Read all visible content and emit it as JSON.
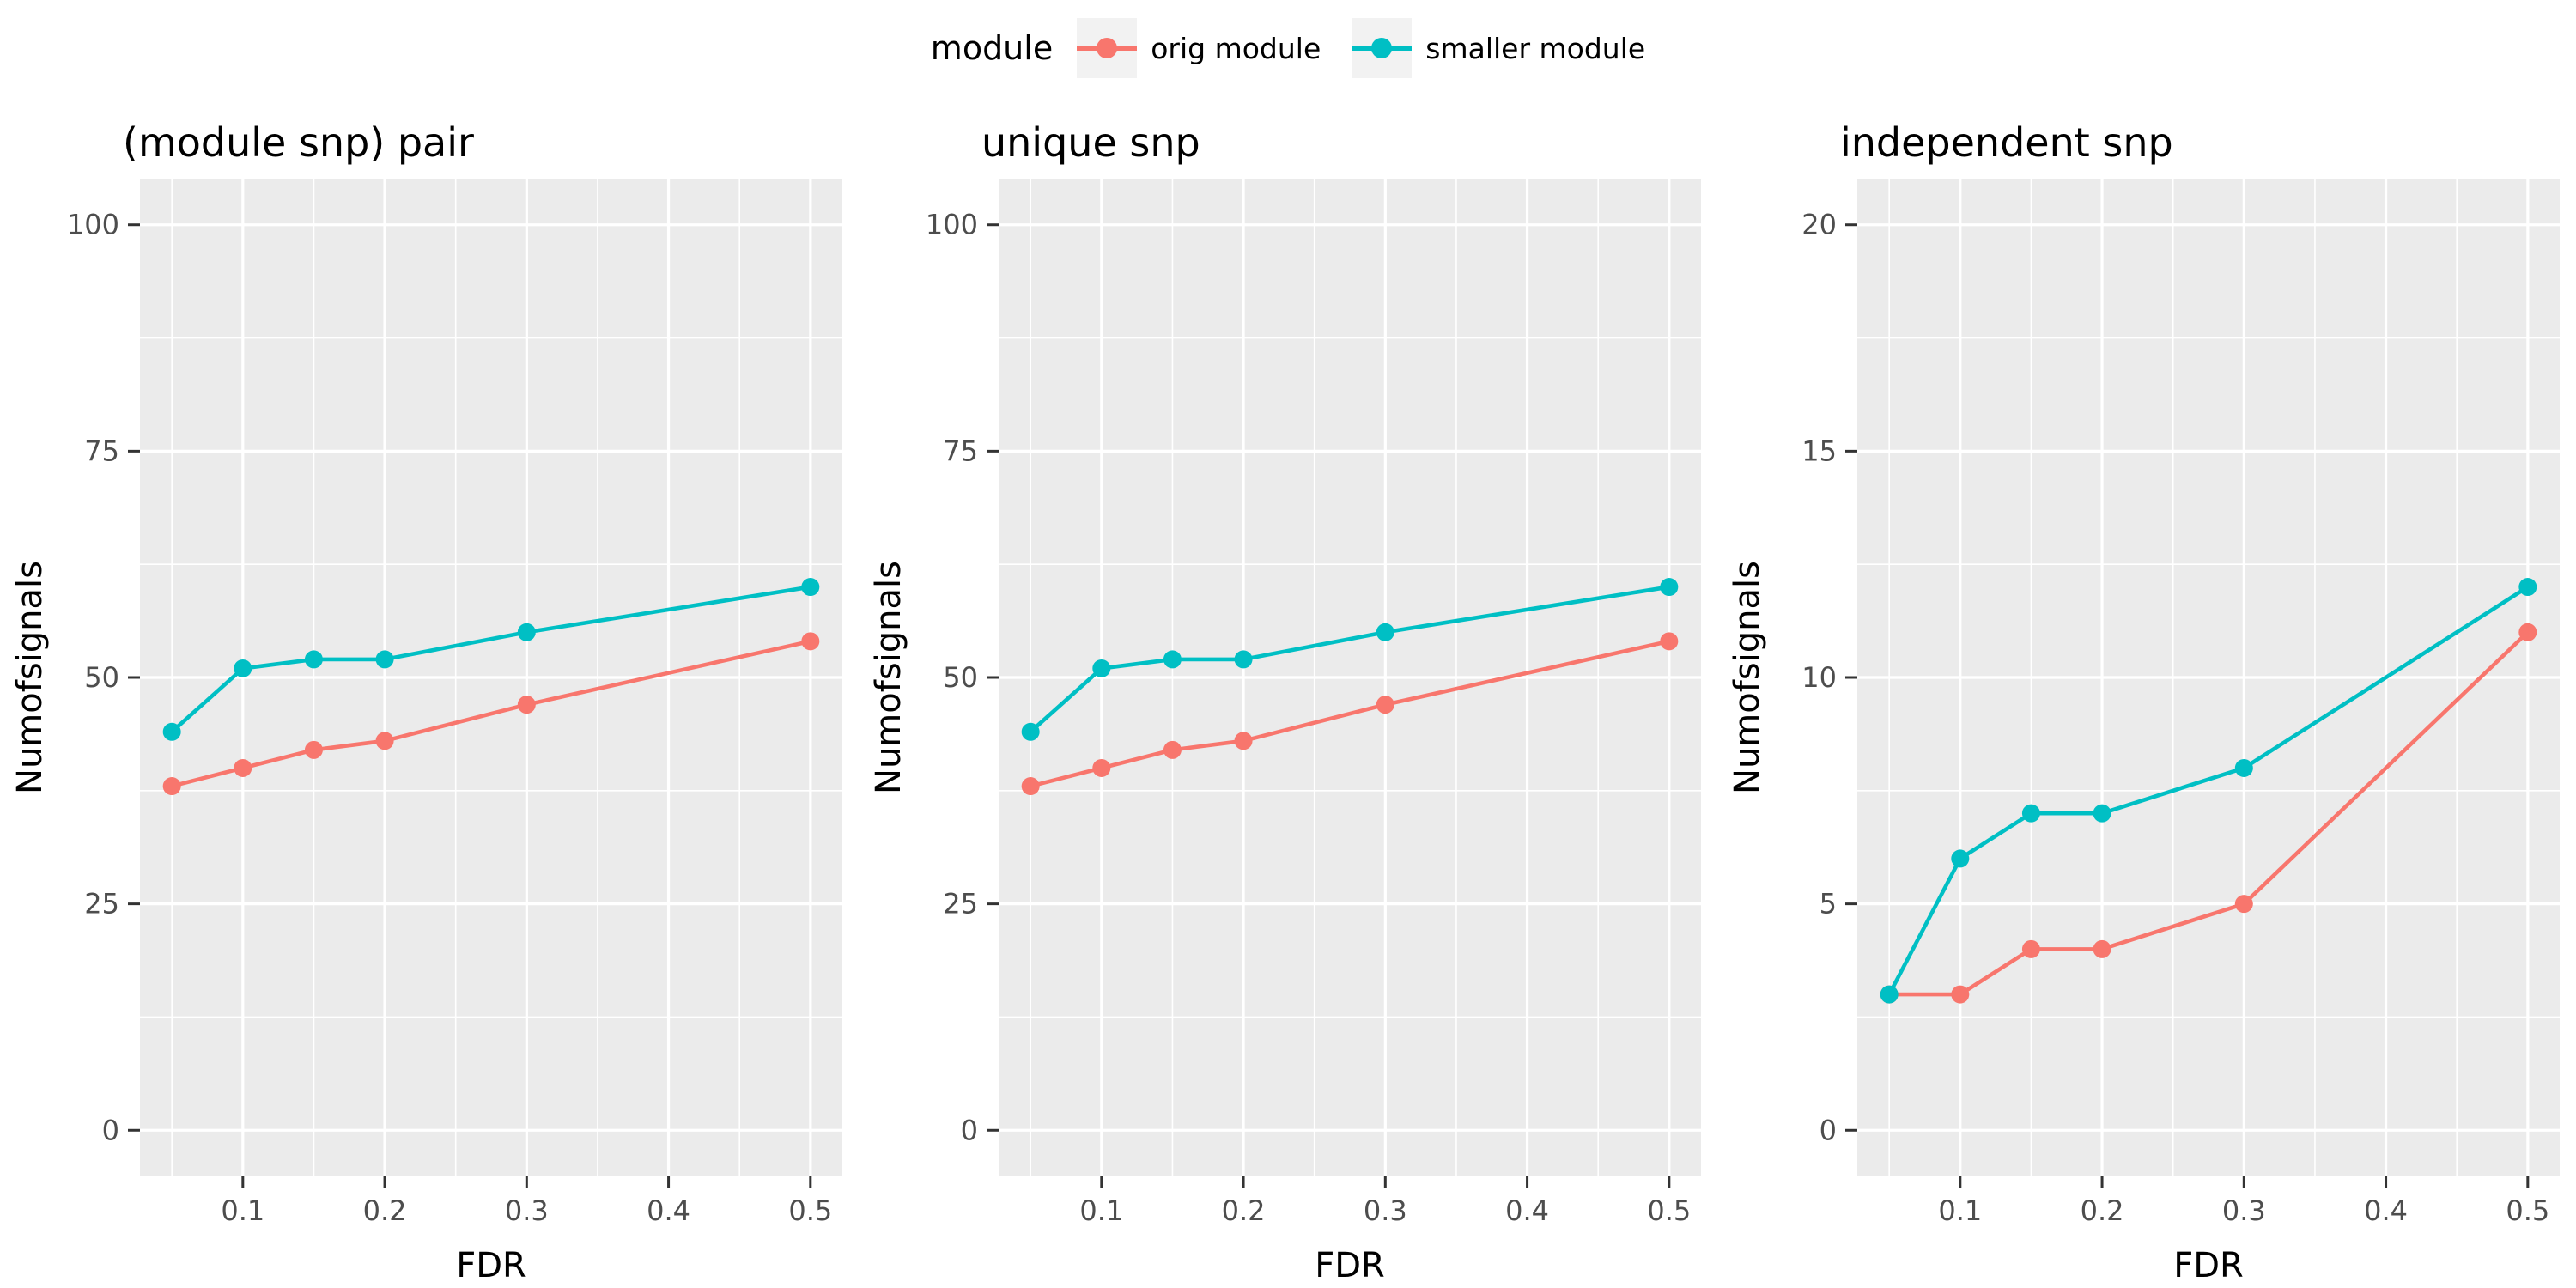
{
  "legend": {
    "title": "module",
    "items": [
      {
        "label": "orig module",
        "color": "#F8766D"
      },
      {
        "label": "smaller module",
        "color": "#00BFC4"
      }
    ]
  },
  "colors": {
    "panel_bg": "#EBEBEB",
    "grid_major": "#FFFFFF",
    "grid_minor": "#FFFFFF",
    "tick_text": "#4D4D4D",
    "tick_mark": "#333333",
    "title_text": "#000000",
    "axis_title_text": "#000000",
    "legend_key_bg": "#F2F2F2",
    "series_orig": "#F8766D",
    "series_smaller": "#00BFC4"
  },
  "chart_data": [
    {
      "type": "line",
      "title": "(module snp) pair",
      "xlabel": "FDR",
      "ylabel": "Numofsignals",
      "x": [
        0.05,
        0.1,
        0.15,
        0.2,
        0.3,
        0.5
      ],
      "series": [
        {
          "name": "orig module",
          "color": "#F8766D",
          "values": [
            38,
            40,
            42,
            43,
            47,
            54
          ]
        },
        {
          "name": "smaller module",
          "color": "#00BFC4",
          "values": [
            44,
            51,
            52,
            52,
            55,
            60
          ]
        }
      ],
      "xlim": [
        0.0275,
        0.5225
      ],
      "ylim": [
        0,
        100
      ],
      "xticks": [
        0.1,
        0.2,
        0.3,
        0.4,
        0.5
      ],
      "xtick_labels": [
        "0.1",
        "0.2",
        "0.3",
        "0.4",
        "0.5"
      ],
      "xminor": [
        0.05,
        0.15,
        0.25,
        0.35,
        0.45
      ],
      "yticks": [
        0,
        25,
        50,
        75,
        100
      ],
      "ytick_labels": [
        "0",
        "25",
        "50",
        "75",
        "100"
      ],
      "yminor": [
        12.5,
        37.5,
        62.5,
        87.5
      ],
      "grid": true,
      "legend_position": "top"
    },
    {
      "type": "line",
      "title": "unique snp",
      "xlabel": "FDR",
      "ylabel": "Numofsignals",
      "x": [
        0.05,
        0.1,
        0.15,
        0.2,
        0.3,
        0.5
      ],
      "series": [
        {
          "name": "orig module",
          "color": "#F8766D",
          "values": [
            38,
            40,
            42,
            43,
            47,
            54
          ]
        },
        {
          "name": "smaller module",
          "color": "#00BFC4",
          "values": [
            44,
            51,
            52,
            52,
            55,
            60
          ]
        }
      ],
      "xlim": [
        0.0275,
        0.5225
      ],
      "ylim": [
        0,
        100
      ],
      "xticks": [
        0.1,
        0.2,
        0.3,
        0.4,
        0.5
      ],
      "xtick_labels": [
        "0.1",
        "0.2",
        "0.3",
        "0.4",
        "0.5"
      ],
      "xminor": [
        0.05,
        0.15,
        0.25,
        0.35,
        0.45
      ],
      "yticks": [
        0,
        25,
        50,
        75,
        100
      ],
      "ytick_labels": [
        "0",
        "25",
        "50",
        "75",
        "100"
      ],
      "yminor": [
        12.5,
        37.5,
        62.5,
        87.5
      ],
      "grid": true,
      "legend_position": "top"
    },
    {
      "type": "line",
      "title": "independent snp",
      "xlabel": "FDR",
      "ylabel": "Numofsignals",
      "x": [
        0.05,
        0.1,
        0.15,
        0.2,
        0.3,
        0.5
      ],
      "series": [
        {
          "name": "orig module",
          "color": "#F8766D",
          "values": [
            3,
            3,
            4,
            4,
            5,
            11
          ]
        },
        {
          "name": "smaller module",
          "color": "#00BFC4",
          "values": [
            3,
            6,
            7,
            7,
            8,
            12
          ]
        }
      ],
      "xlim": [
        0.0275,
        0.5225
      ],
      "ylim": [
        0,
        20
      ],
      "xticks": [
        0.1,
        0.2,
        0.3,
        0.4,
        0.5
      ],
      "xtick_labels": [
        "0.1",
        "0.2",
        "0.3",
        "0.4",
        "0.5"
      ],
      "xminor": [
        0.05,
        0.15,
        0.25,
        0.35,
        0.45
      ],
      "yticks": [
        0,
        5,
        10,
        15,
        20
      ],
      "ytick_labels": [
        "0",
        "5",
        "10",
        "15",
        "20"
      ],
      "yminor": [
        2.5,
        7.5,
        12.5,
        17.5
      ],
      "grid": true,
      "legend_position": "top"
    }
  ]
}
